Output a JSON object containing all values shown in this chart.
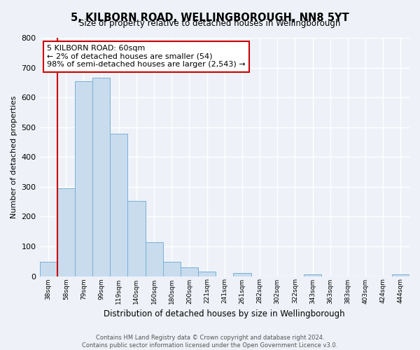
{
  "title": "5, KILBORN ROAD, WELLINGBOROUGH, NN8 5YT",
  "subtitle": "Size of property relative to detached houses in Wellingborough",
  "xlabel": "Distribution of detached houses by size in Wellingborough",
  "ylabel": "Number of detached properties",
  "footer_line1": "Contains HM Land Registry data © Crown copyright and database right 2024.",
  "footer_line2": "Contains public sector information licensed under the Open Government Licence v3.0.",
  "bin_labels": [
    "38sqm",
    "58sqm",
    "79sqm",
    "99sqm",
    "119sqm",
    "140sqm",
    "160sqm",
    "180sqm",
    "200sqm",
    "221sqm",
    "241sqm",
    "261sqm",
    "282sqm",
    "302sqm",
    "322sqm",
    "343sqm",
    "363sqm",
    "383sqm",
    "403sqm",
    "424sqm",
    "444sqm"
  ],
  "bar_heights": [
    48,
    295,
    655,
    665,
    478,
    253,
    115,
    49,
    29,
    15,
    0,
    10,
    0,
    0,
    0,
    7,
    0,
    0,
    0,
    0,
    7
  ],
  "bar_color": "#c8dcee",
  "bar_edge_color": "#7ab0d4",
  "background_color": "#eef2f8",
  "grid_color": "#ffffff",
  "annotation_text": "5 KILBORN ROAD: 60sqm\n← 2% of detached houses are smaller (54)\n98% of semi-detached houses are larger (2,543) →",
  "annotation_box_color": "#ffffff",
  "annotation_box_edge_color": "#cc0000",
  "vline_color": "#cc0000",
  "vline_pos": 1.5,
  "ylim": [
    0,
    800
  ],
  "yticks": [
    0,
    100,
    200,
    300,
    400,
    500,
    600,
    700,
    800
  ]
}
